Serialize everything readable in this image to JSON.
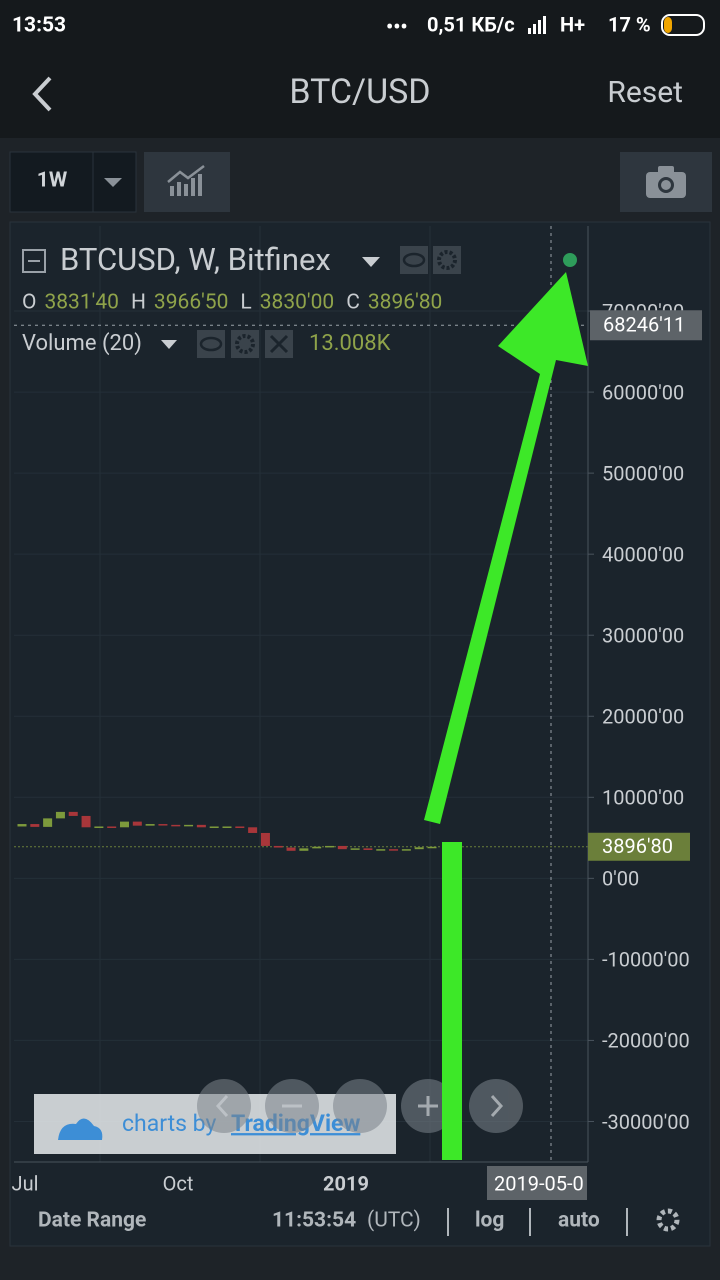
{
  "status_bar": {
    "time": "13:53",
    "network": "0,51 КБ/с",
    "signal": "H+",
    "battery": "17 %"
  },
  "header": {
    "title": "BTC/USD",
    "reset": "Reset"
  },
  "toolbar": {
    "interval": "1W"
  },
  "chart": {
    "symbol": "BTCUSD, W, Bitfinex",
    "ohlc": [
      {
        "key": "O",
        "value": "3831'40"
      },
      {
        "key": "H",
        "value": "3966'50"
      },
      {
        "key": "L",
        "value": "3830'00"
      },
      {
        "key": "C",
        "value": "3896'80"
      }
    ],
    "volume_label": "Volume (20)",
    "volume_value": "13.008K",
    "ylim": [
      -35000,
      80000
    ],
    "yticks": [
      {
        "value": 70000,
        "label": "70000'00"
      },
      {
        "value": 60000,
        "label": "60000'00"
      },
      {
        "value": 50000,
        "label": "50000'00"
      },
      {
        "value": 40000,
        "label": "40000'00"
      },
      {
        "value": 30000,
        "label": "30000'00"
      },
      {
        "value": 20000,
        "label": "20000'00"
      },
      {
        "value": 10000,
        "label": "10000'00"
      },
      {
        "value": 0,
        "label": "0'00"
      },
      {
        "value": -10000,
        "label": "-10000'00"
      },
      {
        "value": -20000,
        "label": "-20000'00"
      },
      {
        "value": -30000,
        "label": "-30000'00"
      }
    ],
    "crosshair_price": {
      "value": 68246.11,
      "label": "68246'11"
    },
    "last_price": {
      "value": 3896.8,
      "label": "3896'80"
    },
    "opens": [
      6400,
      6700,
      6350,
      7400,
      8200,
      7700,
      6300,
      6400,
      6300,
      7000,
      6500,
      6700,
      6600,
      6500,
      6600,
      6300,
      6400,
      6400,
      6300,
      5600,
      4000,
      3800,
      3400,
      3700,
      3900,
      4000,
      3600,
      3700,
      3500,
      3600,
      3500,
      3600,
      3831.4
    ],
    "closes": [
      6700,
      6350,
      7400,
      8200,
      7700,
      6300,
      6400,
      6300,
      7000,
      6500,
      6700,
      6600,
      6500,
      6600,
      6300,
      6400,
      6400,
      6300,
      5600,
      4000,
      3800,
      3400,
      3700,
      3900,
      4000,
      3600,
      3700,
      3500,
      3600,
      3500,
      3600,
      3831.4,
      3896.8
    ],
    "x_labels": [
      "Jul",
      "Oct",
      "2019"
    ],
    "crosshair_date": "2019-05-0",
    "watermark": "charts by",
    "brand": "TradingView"
  },
  "footer": {
    "date_range": "Date Range",
    "time": "11:53:54",
    "timezone": "(UTC)",
    "log": "log",
    "auto": "auto"
  }
}
